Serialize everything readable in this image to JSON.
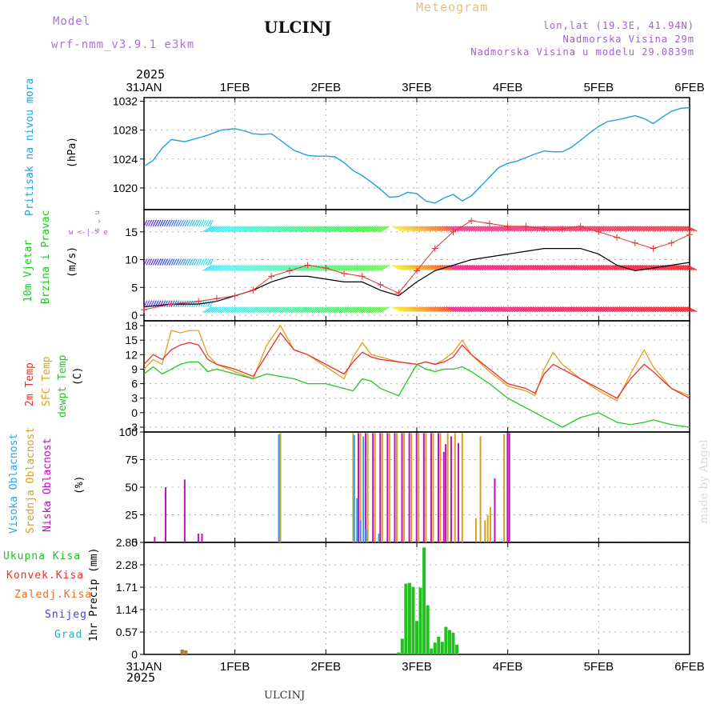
{
  "header": {
    "model_label": "Model",
    "model_name": "wrf-nmm_v3.9.1 e3km",
    "city": "ULCINJ",
    "meteogram": "Meteogram",
    "lonlat": "lon,lat (19.3E, 41.94N)",
    "altitude": "Nadmorska Visina 29m",
    "model_altitude": "Nadmorska Visina u modelu 29.0839m",
    "year_top": "2025",
    "year_bottom": "2025",
    "footer_city": "ULCINJ",
    "credit": "made by Angel"
  },
  "colors": {
    "pressure": "#20a0e0",
    "temp2m": "#e83030",
    "sfc": "#e0a020",
    "dewpt": "#20c820",
    "high_cloud": "#30a0e8",
    "mid_cloud": "#d8a020",
    "low_cloud": "#c010c0",
    "precip": "#20c020",
    "speed_line": "#000000",
    "gust": "#e83030"
  },
  "chart_data": [
    {
      "type": "line",
      "name": "pressure",
      "title": "Pritisak na nivou mora",
      "ylabel": "(hPa)",
      "x_unit": "days since 31JAN 00UTC",
      "x_ticks": [
        "31JAN",
        "1FEB",
        "2FEB",
        "3FEB",
        "4FEB",
        "5FEB",
        "6FEB"
      ],
      "ylim": [
        1017,
        1032.5
      ],
      "yticks": [
        1020,
        1024,
        1028,
        1032
      ],
      "x": [
        0,
        0.1,
        0.2,
        0.3,
        0.45,
        0.7,
        0.85,
        1.0,
        1.1,
        1.2,
        1.3,
        1.4,
        1.5,
        1.65,
        1.8,
        1.9,
        2.0,
        2.1,
        2.2,
        2.3,
        2.4,
        2.5,
        2.6,
        2.7,
        2.8,
        2.9,
        3.0,
        3.1,
        3.2,
        3.3,
        3.4,
        3.5,
        3.6,
        3.7,
        3.8,
        3.9,
        4.0,
        4.1,
        4.2,
        4.3,
        4.4,
        4.5,
        4.6,
        4.7,
        4.8,
        4.9,
        5.0,
        5.1,
        5.2,
        5.3,
        5.4,
        5.5,
        5.6,
        5.7,
        5.8,
        5.9,
        6.0
      ],
      "values": [
        1023,
        1023.8,
        1025.5,
        1026.7,
        1026.4,
        1027.3,
        1028,
        1028.2,
        1027.9,
        1027.5,
        1027.4,
        1027.5,
        1026.6,
        1025.2,
        1024.5,
        1024.4,
        1024.4,
        1024.3,
        1023.5,
        1022.4,
        1021.7,
        1020.8,
        1019.8,
        1018.7,
        1018.8,
        1019.4,
        1019.2,
        1018.2,
        1017.9,
        1018.6,
        1019.1,
        1018.2,
        1018.9,
        1020.2,
        1021.5,
        1022.8,
        1023.4,
        1023.7,
        1024.2,
        1024.7,
        1025.1,
        1025.0,
        1025.0,
        1025.6,
        1026.6,
        1027.6,
        1028.5,
        1029.2,
        1029.4,
        1029.7,
        1030.0,
        1029.6,
        1028.9,
        1029.8,
        1030.6,
        1031.0,
        1031.1
      ]
    },
    {
      "type": "line",
      "name": "wind",
      "title": "10m Vjetar",
      "title2": "Brzina i Pravac",
      "ylabel": "(m/s)",
      "compass": "w <-|-> e",
      "compass_ns": "n ^ s",
      "ylim": [
        -1,
        19
      ],
      "yticks": [
        0,
        5,
        10,
        15
      ],
      "x": [
        0,
        0.3,
        0.6,
        0.8,
        1.0,
        1.2,
        1.4,
        1.6,
        1.8,
        2.0,
        2.2,
        2.4,
        2.6,
        2.8,
        3.0,
        3.2,
        3.4,
        3.6,
        3.8,
        4.0,
        4.2,
        4.4,
        4.6,
        4.8,
        5.0,
        5.2,
        5.4,
        5.6,
        5.8,
        6.0
      ],
      "speed": [
        1.5,
        2,
        2,
        2.5,
        3.5,
        4.5,
        6,
        7,
        7,
        6.5,
        6,
        6,
        4.5,
        3.5,
        6,
        8,
        9,
        10,
        10.5,
        11,
        11.5,
        12,
        12,
        12,
        11,
        9,
        8,
        8.5,
        9,
        9.5
      ],
      "gusts": [
        1,
        2,
        2.5,
        3,
        3.5,
        4.5,
        7,
        8,
        9,
        8.5,
        7.5,
        7,
        5.5,
        4,
        8,
        12,
        15,
        17,
        16.5,
        16,
        16,
        15.5,
        15.5,
        16,
        15,
        14,
        13,
        12,
        13,
        14.5
      ]
    },
    {
      "type": "line",
      "name": "temperature",
      "ylabel": "(C)",
      "legend": [
        "2m Temp",
        "SFC Temp",
        "dewpt Temp"
      ],
      "ylim": [
        -4,
        19
      ],
      "yticks": [
        -3,
        0,
        3,
        6,
        9,
        12,
        15,
        18
      ],
      "x": [
        0,
        0.1,
        0.2,
        0.3,
        0.4,
        0.5,
        0.6,
        0.7,
        0.8,
        1.0,
        1.2,
        1.35,
        1.5,
        1.65,
        1.8,
        2.0,
        2.2,
        2.3,
        2.4,
        2.5,
        2.6,
        2.8,
        3.0,
        3.1,
        3.2,
        3.3,
        3.4,
        3.5,
        3.6,
        3.8,
        4.0,
        4.2,
        4.3,
        4.4,
        4.5,
        4.6,
        4.8,
        5.0,
        5.2,
        5.35,
        5.5,
        5.6,
        5.8,
        6.0
      ],
      "temp2m": [
        10,
        12,
        11,
        13,
        14,
        14.5,
        14,
        11,
        10,
        9,
        7.5,
        12,
        16.5,
        13,
        12,
        10,
        8,
        10.5,
        12.5,
        11.5,
        11,
        10.5,
        10,
        10.5,
        10,
        10.5,
        11.5,
        14,
        12,
        9,
        6,
        5,
        4,
        8,
        10,
        9,
        7,
        5,
        3,
        7,
        10,
        8.5,
        5,
        3
      ],
      "sfc": [
        9,
        11,
        10,
        17,
        16.5,
        17,
        17,
        12,
        10,
        8.5,
        7,
        14,
        18,
        13,
        12,
        9.5,
        7,
        11.5,
        14.5,
        12,
        11.5,
        10.5,
        10,
        10.5,
        10,
        11,
        12.5,
        15,
        12,
        8.5,
        5.5,
        4.5,
        3.5,
        9,
        12.5,
        10,
        7,
        4.5,
        2.5,
        8,
        13,
        9.5,
        5,
        3.5
      ],
      "dewpt": [
        8,
        9.5,
        8,
        9,
        10,
        10.5,
        10.5,
        8.5,
        9,
        8,
        7,
        8,
        7.5,
        7,
        6,
        6,
        5,
        4.5,
        7,
        6.5,
        5,
        3.5,
        10,
        9,
        8.5,
        9,
        9,
        9.5,
        8.5,
        6,
        3,
        1,
        0,
        -1,
        -2,
        -3,
        -1,
        0,
        -2,
        -2.5,
        -2,
        -1.5,
        -2.5,
        -3
      ]
    },
    {
      "type": "bar",
      "name": "clouds",
      "ylabel": "(%)",
      "legend": [
        "Visoka Oblacnost",
        "Srednja Oblacnost",
        "Niska Oblacnost"
      ],
      "ylim": [
        0,
        100
      ],
      "yticks": [
        0,
        25,
        50,
        75,
        100
      ],
      "high": [
        [
          1.5,
          98
        ],
        [
          2.33,
          97
        ],
        [
          2.36,
          40
        ],
        [
          2.4,
          20
        ],
        [
          2.43,
          96
        ],
        [
          2.46,
          12
        ],
        [
          2.6,
          8
        ]
      ],
      "mid": [
        [
          1.5,
          99
        ],
        [
          2.3,
          99
        ],
        [
          2.38,
          99
        ],
        [
          2.46,
          99
        ],
        [
          2.54,
          99
        ],
        [
          2.62,
          99
        ],
        [
          2.7,
          99
        ],
        [
          2.78,
          99
        ],
        [
          2.86,
          99
        ],
        [
          2.94,
          99
        ],
        [
          3.02,
          99
        ],
        [
          3.1,
          99
        ],
        [
          3.18,
          99
        ],
        [
          3.26,
          99
        ],
        [
          3.34,
          99
        ],
        [
          3.42,
          99
        ],
        [
          3.5,
          99
        ],
        [
          3.65,
          22
        ],
        [
          3.7,
          96
        ],
        [
          3.75,
          20
        ],
        [
          3.78,
          25
        ],
        [
          3.81,
          32
        ],
        [
          3.96,
          98
        ]
      ],
      "low": [
        [
          0.1,
          5
        ],
        [
          0.22,
          50
        ],
        [
          0.43,
          57
        ],
        [
          0.58,
          8
        ],
        [
          0.62,
          8
        ],
        [
          2.34,
          99
        ],
        [
          2.42,
          99
        ],
        [
          2.5,
          99
        ],
        [
          2.58,
          99
        ],
        [
          2.66,
          99
        ],
        [
          2.74,
          99
        ],
        [
          2.82,
          99
        ],
        [
          2.9,
          99
        ],
        [
          2.98,
          99
        ],
        [
          3.06,
          99
        ],
        [
          3.14,
          99
        ],
        [
          3.22,
          99
        ],
        [
          3.28,
          82
        ],
        [
          3.3,
          89
        ],
        [
          3.36,
          96
        ],
        [
          3.44,
          90
        ],
        [
          3.84,
          58
        ],
        [
          3.98,
          99
        ],
        [
          4.0,
          99
        ]
      ]
    },
    {
      "type": "bar",
      "name": "precipitation",
      "ylabel": "1hr Precip (mm)",
      "legend": [
        "Ukupna Kisa",
        "Konvek.Kisa",
        "Zaledj.Kisa",
        "Snijeg",
        "Grad"
      ],
      "ylim": [
        0,
        2.85
      ],
      "yticks": [
        0,
        0.57,
        1.14,
        1.71,
        2.28,
        2.85
      ],
      "x": [
        0.42,
        0.46,
        2.8,
        2.84,
        2.88,
        2.92,
        2.96,
        3.0,
        3.04,
        3.08,
        3.12,
        3.16,
        3.2,
        3.24,
        3.28,
        3.32,
        3.36,
        3.4,
        3.44
      ],
      "values": [
        0.12,
        0.1,
        0.05,
        0.4,
        1.8,
        1.82,
        1.72,
        0.85,
        1.7,
        2.72,
        1.25,
        0.15,
        0.3,
        0.45,
        0.32,
        0.7,
        0.62,
        0.55,
        0.25
      ],
      "convective": [
        0.12,
        0.08,
        0,
        0,
        0,
        0,
        0,
        0,
        0,
        0,
        0,
        0,
        0,
        0,
        0,
        0,
        0,
        0,
        0
      ]
    }
  ]
}
